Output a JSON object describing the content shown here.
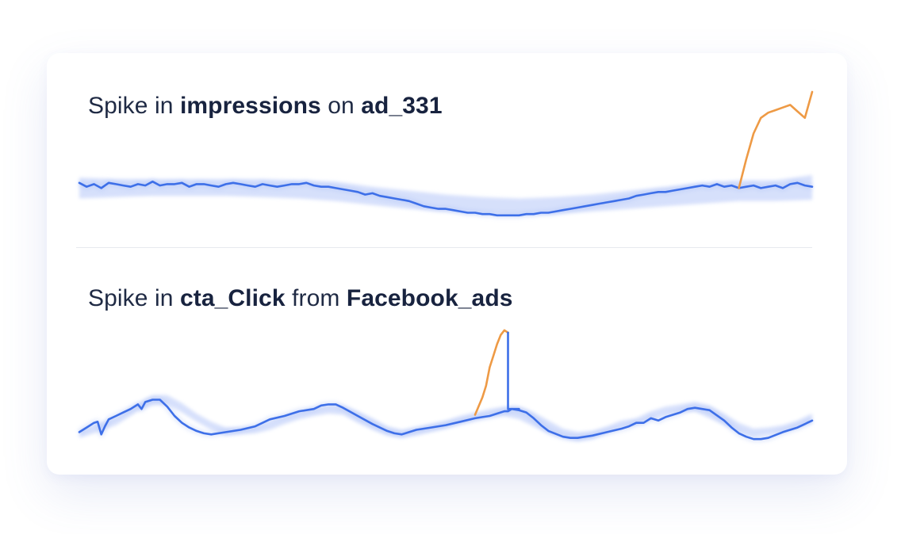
{
  "theme": {
    "card_background": "#ffffff",
    "text_color": "#1f2a44",
    "line_color": "#3d6fe8",
    "band_color": "#c9d6fa",
    "anomaly_color": "#ee9a45",
    "divider_color": "#e7e9ef"
  },
  "charts": [
    {
      "title": {
        "prefix": "Spike in ",
        "metric": "impressions",
        "joiner": " on ",
        "entity": "ad_331"
      }
    },
    {
      "title": {
        "prefix": "Spike in ",
        "metric": "cta_Click",
        "joiner": " from ",
        "entity": "Facebook_ads"
      }
    }
  ],
  "chart_data": [
    {
      "type": "line",
      "title": "Spike in impressions on ad_331",
      "xlim": [
        0,
        100
      ],
      "ylim": [
        0,
        100
      ],
      "grid": false,
      "series": [
        {
          "role": "expected range band",
          "color": "#c9d6fa",
          "x": [
            0,
            5,
            10,
            15,
            20,
            25,
            30,
            35,
            40,
            45,
            50,
            55,
            60,
            65,
            70,
            75,
            80,
            85,
            90,
            95,
            100
          ],
          "lower": [
            18,
            19,
            20,
            20,
            20,
            19,
            18,
            16,
            13,
            10,
            8,
            6,
            5,
            6,
            8,
            10,
            12,
            14,
            16,
            16,
            17
          ],
          "upper": [
            34,
            33,
            33,
            33,
            33,
            33,
            32,
            31,
            27,
            24,
            21,
            19,
            18,
            19,
            21,
            24,
            27,
            30,
            32,
            32,
            36
          ]
        },
        {
          "role": "actual",
          "color": "#3d6fe8",
          "x": [
            0,
            1,
            2,
            3,
            4,
            5,
            6,
            7,
            8,
            9,
            10,
            11,
            12,
            13,
            14,
            15,
            16,
            17,
            18,
            19,
            20,
            21,
            22,
            23,
            24,
            25,
            26,
            27,
            28,
            29,
            30,
            31,
            32,
            33,
            34,
            35,
            36,
            37,
            38,
            39,
            40,
            41,
            42,
            43,
            44,
            45,
            46,
            47,
            48,
            49,
            50,
            51,
            52,
            53,
            54,
            55,
            56,
            57,
            58,
            59,
            60,
            61,
            62,
            63,
            64,
            65,
            66,
            67,
            68,
            69,
            70,
            71,
            72,
            73,
            74,
            75,
            76,
            77,
            78,
            79,
            80,
            81,
            82,
            83,
            84,
            85,
            86,
            87,
            88,
            89,
            90,
            91,
            92,
            93,
            94,
            95,
            96,
            97,
            98,
            99,
            100
          ],
          "y": [
            30,
            27,
            29,
            26,
            30,
            29,
            28,
            27,
            29,
            28,
            31,
            28,
            29,
            29,
            30,
            27,
            29,
            29,
            28,
            27,
            29,
            30,
            29,
            28,
            27,
            29,
            28,
            27,
            28,
            29,
            29,
            30,
            28,
            27,
            27,
            26,
            25,
            24,
            23,
            21,
            22,
            20,
            19,
            18,
            17,
            16,
            14,
            12,
            11,
            10,
            10,
            9,
            8,
            7,
            7,
            6,
            6,
            5,
            5,
            5,
            5,
            6,
            6,
            7,
            7,
            8,
            9,
            10,
            11,
            12,
            13,
            14,
            15,
            16,
            17,
            18,
            20,
            21,
            22,
            23,
            23,
            24,
            25,
            26,
            27,
            28,
            27,
            29,
            27,
            28,
            26,
            27,
            28,
            26,
            27,
            28,
            26,
            29,
            30,
            28,
            27
          ]
        },
        {
          "role": "anomaly",
          "color": "#ee9a45",
          "x": [
            90,
            91,
            92,
            93,
            94,
            95,
            96,
            97,
            98,
            99,
            100
          ],
          "y": [
            26,
            48,
            68,
            80,
            84,
            86,
            88,
            90,
            85,
            80,
            100
          ]
        }
      ]
    },
    {
      "type": "line",
      "title": "Spike in cta_Click from Facebook_ads",
      "xlim": [
        0,
        100
      ],
      "ylim": [
        0,
        100
      ],
      "grid": false,
      "series": [
        {
          "role": "expected range band",
          "color": "#c9d6fa",
          "x": [
            0,
            2,
            5,
            8,
            10,
            12,
            14,
            16,
            18,
            20,
            22,
            24,
            26,
            28,
            30,
            32,
            34,
            36,
            38,
            40,
            42,
            44,
            46,
            48,
            50,
            52,
            54,
            56,
            58,
            60,
            62,
            64,
            66,
            68,
            70,
            72,
            74,
            76,
            78,
            80,
            82,
            84,
            86,
            88,
            90,
            92,
            94,
            96,
            98,
            100
          ],
          "lower": [
            5,
            9,
            16,
            28,
            33,
            34,
            27,
            19,
            12,
            7,
            8,
            9,
            12,
            17,
            21,
            24,
            26,
            25,
            18,
            12,
            7,
            5,
            7,
            10,
            13,
            17,
            20,
            23,
            24,
            21,
            15,
            9,
            5,
            2,
            4,
            9,
            14,
            16,
            21,
            25,
            27,
            28,
            22,
            16,
            10,
            6,
            8,
            10,
            14,
            18
          ],
          "upper": [
            11,
            16,
            23,
            35,
            42,
            42,
            35,
            26,
            19,
            14,
            14,
            15,
            19,
            24,
            28,
            31,
            33,
            33,
            28,
            22,
            15,
            12,
            14,
            17,
            20,
            24,
            27,
            30,
            32,
            32,
            27,
            20,
            13,
            10,
            11,
            15,
            20,
            22,
            28,
            32,
            34,
            36,
            33,
            26,
            18,
            13,
            14,
            16,
            20,
            26
          ]
        },
        {
          "role": "actual",
          "color": "#3d6fe8",
          "x": [
            0,
            1,
            2,
            2.5,
            3,
            3.5,
            4,
            5,
            6,
            7,
            8,
            8.5,
            9,
            10,
            11,
            12,
            13,
            14,
            15,
            16,
            17,
            18,
            20,
            22,
            24,
            25,
            26,
            28,
            30,
            32,
            33,
            34,
            35,
            36,
            38,
            40,
            42,
            43,
            44,
            45,
            46,
            48,
            50,
            52,
            54,
            55,
            56,
            57,
            58,
            58.5,
            59,
            60,
            61,
            62,
            63,
            64,
            66,
            67,
            68,
            70,
            72,
            74,
            75,
            76,
            77,
            78,
            79,
            80,
            82,
            83,
            84,
            85,
            86,
            88,
            89,
            90,
            91,
            92,
            93,
            94,
            96,
            98,
            100
          ],
          "y": [
            10,
            14,
            18,
            19,
            8,
            15,
            21,
            24,
            27,
            30,
            34,
            30,
            36,
            38,
            38,
            32,
            24,
            18,
            14,
            11,
            9,
            8,
            10,
            12,
            15,
            18,
            21,
            24,
            28,
            30,
            33,
            34,
            34,
            31,
            24,
            17,
            11,
            9,
            8,
            10,
            12,
            14,
            16,
            19,
            22,
            23,
            24,
            26,
            28,
            28,
            30,
            29,
            27,
            22,
            16,
            11,
            6,
            5,
            5,
            7,
            10,
            13,
            15,
            18,
            18,
            22,
            20,
            23,
            27,
            30,
            31,
            30,
            29,
            20,
            14,
            9,
            6,
            4,
            4,
            5,
            10,
            14,
            20
          ]
        },
        {
          "role": "anomaly",
          "color": "#ee9a45",
          "x": [
            54,
            55,
            55.5,
            56,
            56.5,
            57,
            57.5,
            58,
            58.5
          ],
          "y": [
            25,
            40,
            50,
            66,
            76,
            86,
            94,
            98,
            96
          ]
        },
        {
          "role": "drop-back",
          "color": "#3d6fe8",
          "x": [
            58.5,
            58.5,
            60
          ],
          "y": [
            96,
            30,
            30
          ]
        }
      ]
    }
  ]
}
